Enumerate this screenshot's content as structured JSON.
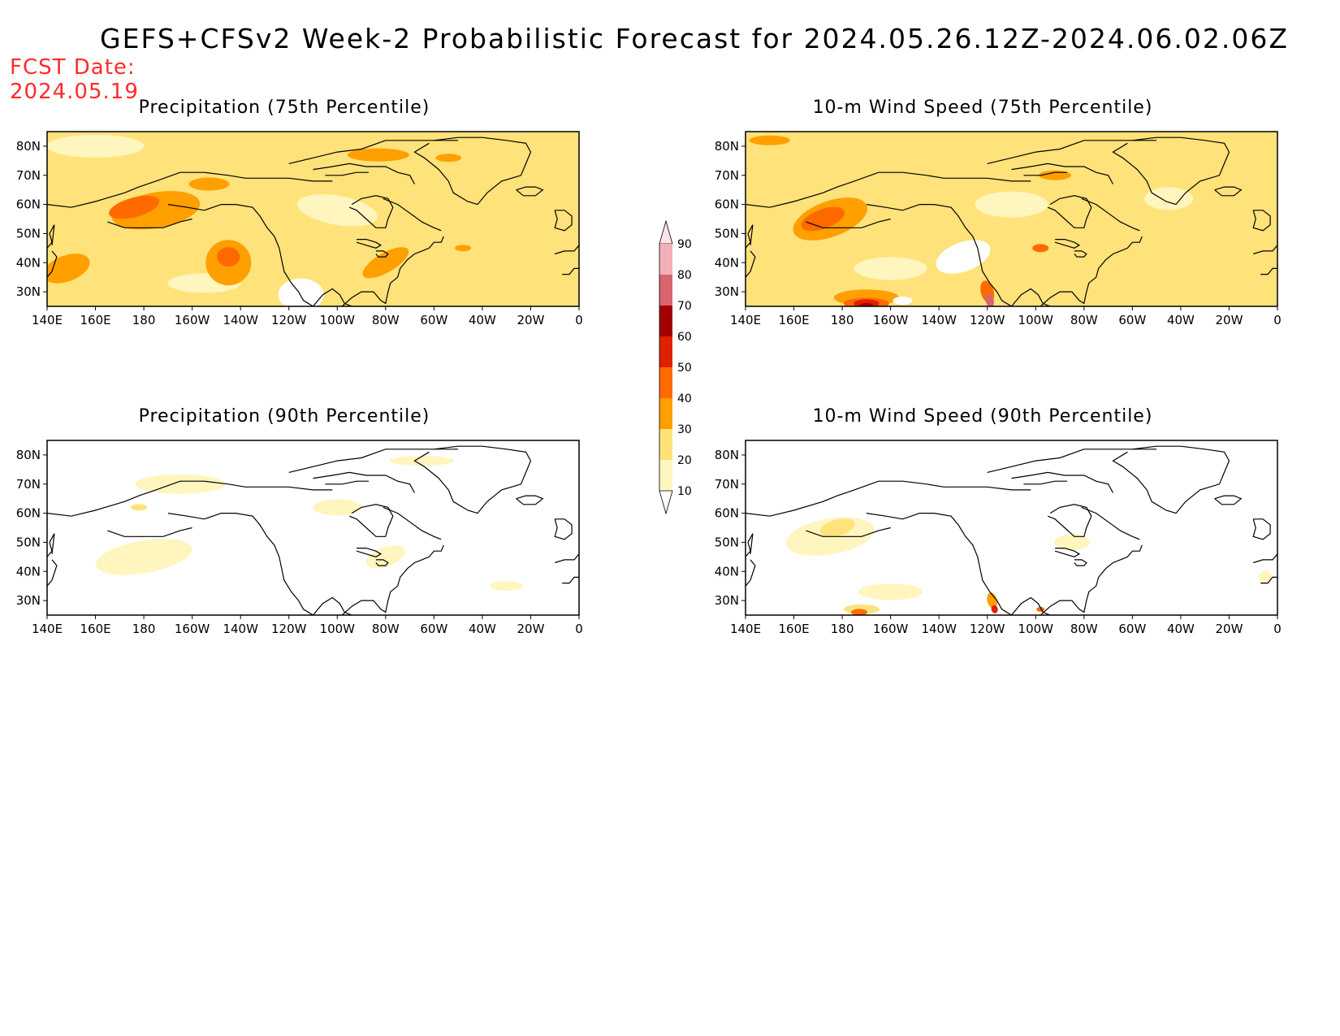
{
  "header": {
    "title": "GEFS+CFSv2 Week-2 Probabilistic Forecast for 2024.05.26.12Z-2024.06.02.06Z",
    "fcst_label": "FCST Date:",
    "fcst_date": "2024.05.19"
  },
  "axes": {
    "lon_ticks": [
      "140E",
      "160E",
      "180",
      "160W",
      "140W",
      "120W",
      "100W",
      "80W",
      "60W",
      "40W",
      "20W",
      "0"
    ],
    "lat_ticks": [
      "80N",
      "70N",
      "60N",
      "50N",
      "40N",
      "30N"
    ],
    "lon_range": [
      140,
      360
    ],
    "lat_range": [
      25,
      85
    ]
  },
  "panels": [
    {
      "title": "Precipitation (75th Percentile)",
      "field": "precip75"
    },
    {
      "title": "10-m Wind Speed (75th Percentile)",
      "field": "wind75"
    },
    {
      "title": "Precipitation (90th Percentile)",
      "field": "precip90"
    },
    {
      "title": "10-m Wind Speed (90th Percentile)",
      "field": "wind90"
    }
  ],
  "colorbar": {
    "levels": [
      "10",
      "20",
      "30",
      "40",
      "50",
      "60",
      "70",
      "80",
      "90"
    ],
    "colors": [
      "#fff5be",
      "#ffe27a",
      "#ff9f00",
      "#ff6a00",
      "#e02000",
      "#a50000",
      "#d9646e",
      "#f4b0b8",
      "#fde3e6"
    ]
  },
  "colors": {
    "title": "#000000",
    "fcst_date": "#ff2a2a",
    "coastline": "#000000"
  }
}
